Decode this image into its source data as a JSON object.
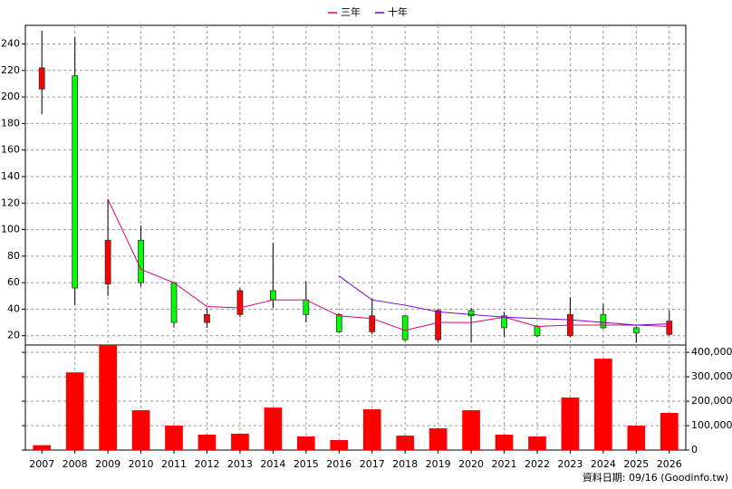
{
  "chart_data": [
    {
      "type": "candlestick",
      "categories": [
        "2007",
        "2008",
        "2009",
        "2010",
        "2011",
        "2012",
        "2013",
        "2014",
        "2015",
        "2016",
        "2017",
        "2018",
        "2019",
        "2020",
        "2021",
        "2022",
        "2023",
        "2024",
        "2025",
        "2026"
      ],
      "open": [
        206,
        216,
        59,
        92,
        60,
        30,
        36,
        54,
        47,
        36,
        23,
        35,
        17,
        39,
        35,
        27,
        20,
        36,
        26,
        21
      ],
      "high": [
        250,
        245,
        123,
        103,
        60,
        41,
        56,
        90,
        61,
        37,
        48,
        35,
        40,
        41,
        38,
        28,
        49,
        44,
        27,
        39
      ],
      "low": [
        187,
        43,
        50,
        57,
        26,
        26,
        34,
        41,
        30,
        22,
        21,
        16,
        15,
        15,
        19,
        19,
        19,
        25,
        15,
        20
      ],
      "close": [
        222,
        56,
        92,
        60,
        30,
        36,
        54,
        47,
        36,
        23,
        35,
        17,
        39,
        35,
        26,
        20,
        36,
        26,
        22,
        31
      ],
      "up_color": "#ff0000",
      "down_color": "#00ff00",
      "series": [
        {
          "name": "三年",
          "color": "#e0007a",
          "values": [
            null,
            null,
            123,
            70,
            60,
            42,
            41,
            47,
            47,
            35,
            33,
            24,
            30,
            30,
            34,
            27,
            28,
            28,
            28,
            27
          ]
        },
        {
          "name": "十年",
          "color": "#7a00c8",
          "values": [
            null,
            null,
            null,
            null,
            null,
            null,
            null,
            null,
            null,
            65,
            47,
            43,
            38,
            36,
            34,
            33,
            32,
            30,
            28,
            29
          ]
        }
      ],
      "ylim": [
        13,
        254
      ],
      "yticks": [
        20,
        40,
        60,
        80,
        100,
        120,
        140,
        160,
        180,
        200,
        220,
        240
      ],
      "grid": true
    },
    {
      "type": "bar",
      "values": [
        20000,
        318000,
        430000,
        163000,
        100000,
        63000,
        67000,
        174000,
        56000,
        41000,
        167000,
        59000,
        89000,
        163000,
        63000,
        56000,
        215000,
        374000,
        100000,
        152000
      ],
      "color": "#ff0000",
      "y2lim": [
        0,
        430000
      ],
      "y2ticks": [
        0,
        {
          "value": 100000,
          "label": "100,000"
        },
        {
          "value": 200000,
          "label": "200,000"
        },
        {
          "value": 300000,
          "label": "300,000"
        },
        {
          "value": 400000,
          "label": "400,000"
        }
      ],
      "grid": true,
      "footnote": "資料日期: 09/16 (Goodinfo.tw)"
    }
  ]
}
